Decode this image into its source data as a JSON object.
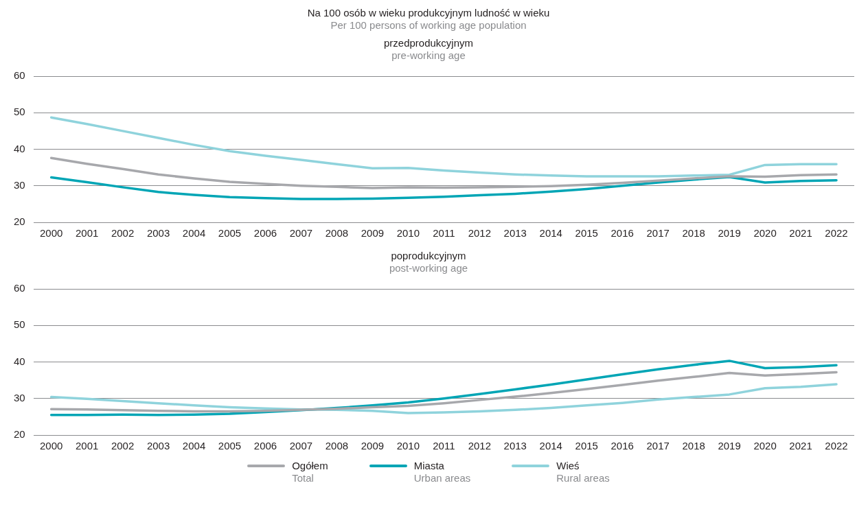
{
  "chart_data": [
    {
      "type": "line",
      "title": "przedprodukcyjnym",
      "subtitle": "pre-working age",
      "annotations": [
        "Na 100 osób w wieku produkcyjnym ludność w wieku",
        "Per 100 persons of working age population"
      ],
      "categories": [
        "2000",
        "2001",
        "2002",
        "2003",
        "2004",
        "2005",
        "2006",
        "2007",
        "2008",
        "2009",
        "2010",
        "2011",
        "2012",
        "2013",
        "2014",
        "2015",
        "2016",
        "2017",
        "2018",
        "2019",
        "2020",
        "2021",
        "2022"
      ],
      "series": [
        {
          "color": "#a7a8ac",
          "values": [
            37.6,
            36.0,
            34.6,
            33.1,
            32.0,
            31.1,
            30.5,
            30.0,
            29.7,
            29.4,
            29.6,
            29.5,
            29.6,
            29.7,
            29.9,
            30.3,
            30.8,
            31.4,
            32.0,
            32.6,
            32.5,
            32.9,
            33.1
          ]
        },
        {
          "color": "#00a5b5",
          "values": [
            32.3,
            31.0,
            29.6,
            28.3,
            27.5,
            26.9,
            26.6,
            26.4,
            26.4,
            26.5,
            26.7,
            27.0,
            27.4,
            27.8,
            28.4,
            29.1,
            30.0,
            30.9,
            31.7,
            32.4,
            30.9,
            31.3,
            31.5
          ]
        },
        {
          "color": "#8fd3dc",
          "values": [
            48.7,
            46.9,
            45.0,
            43.1,
            41.2,
            39.5,
            38.2,
            37.1,
            35.9,
            34.8,
            34.9,
            34.2,
            33.6,
            33.1,
            32.8,
            32.6,
            32.6,
            32.6,
            32.8,
            33.0,
            35.7,
            35.9,
            35.9
          ]
        }
      ],
      "ylim": [
        20,
        60
      ],
      "yticks": [
        20,
        30,
        40,
        50,
        60
      ],
      "grid": "y",
      "line_style": "solid"
    },
    {
      "type": "line",
      "title": "poprodukcyjnym",
      "subtitle": "post-working age",
      "categories": [
        "2000",
        "2001",
        "2002",
        "2003",
        "2004",
        "2005",
        "2006",
        "2007",
        "2008",
        "2009",
        "2010",
        "2011",
        "2012",
        "2013",
        "2014",
        "2015",
        "2016",
        "2017",
        "2018",
        "2019",
        "2020",
        "2021",
        "2022"
      ],
      "series": [
        {
          "name": "Ogółem\nTotal",
          "color": "#a7a8ac",
          "values": [
            27.1,
            27.0,
            26.8,
            26.6,
            26.5,
            26.5,
            26.6,
            26.9,
            27.2,
            27.6,
            28.0,
            28.7,
            29.6,
            30.5,
            31.5,
            32.6,
            33.7,
            34.9,
            35.9,
            37.0,
            36.3,
            36.7,
            37.2
          ]
        },
        {
          "name": "Miasta\nUrban areas",
          "color": "#00a5b5",
          "values": [
            25.5,
            25.5,
            25.6,
            25.5,
            25.6,
            25.8,
            26.3,
            26.8,
            27.4,
            28.1,
            28.9,
            30.0,
            31.2,
            32.5,
            33.8,
            35.2,
            36.6,
            38.0,
            39.2,
            40.3,
            38.3,
            38.6,
            39.1
          ]
        },
        {
          "name": "Wieś\nRural areas",
          "color": "#8fd3dc",
          "values": [
            30.4,
            29.9,
            29.3,
            28.7,
            28.1,
            27.6,
            27.3,
            27.0,
            26.9,
            26.6,
            26.0,
            26.2,
            26.5,
            26.9,
            27.4,
            28.1,
            28.8,
            29.7,
            30.4,
            31.1,
            32.8,
            33.2,
            33.9
          ]
        }
      ],
      "ylim": [
        20,
        60
      ],
      "yticks": [
        20,
        30,
        40,
        50,
        60
      ],
      "grid": "y",
      "line_style": "solid",
      "legend": "bottom"
    }
  ]
}
